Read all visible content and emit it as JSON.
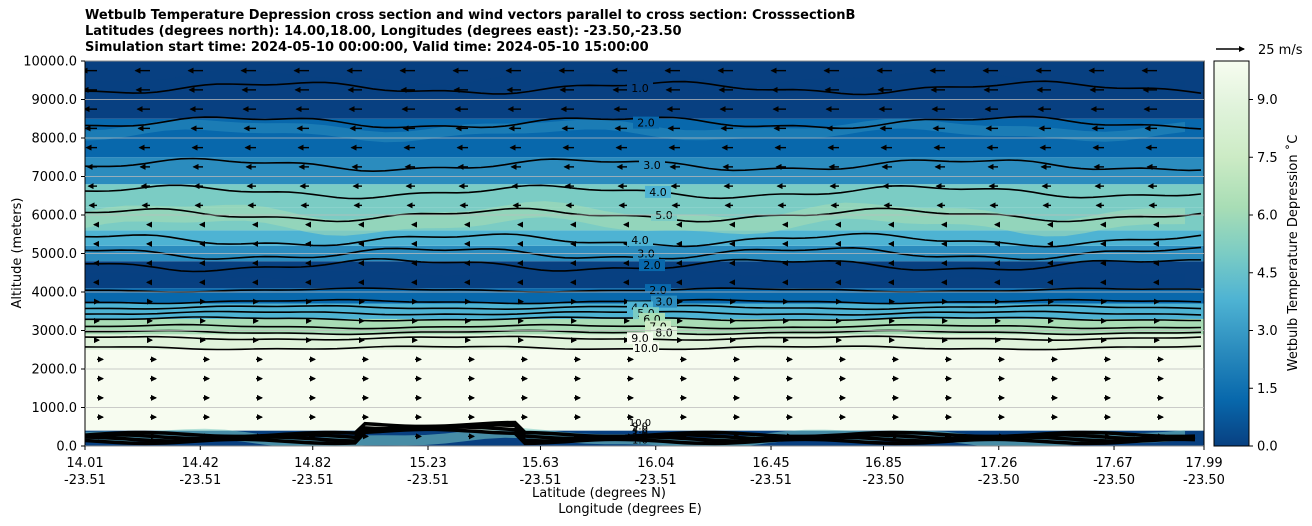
{
  "chart_data": {
    "type": "contour",
    "title_lines": [
      "Wetbulb Temperature Depression cross section and wind vectors parallel to cross section: CrosssectionB",
      "Latitudes (degrees north): 14.00,18.00, Longitudes (degrees east): -23.50,-23.50",
      "Simulation start time: 2024-05-10 00:00:00, Valid time: 2024-05-10 15:00:00"
    ],
    "ylabel": "Altitude (meters)",
    "xlabel_lat": "Latitude (degrees N)",
    "xlabel_lon": "Longitude (degrees E)",
    "ylim": [
      0,
      10000
    ],
    "y_ticks": [
      "0.0",
      "1000.0",
      "2000.0",
      "3000.0",
      "4000.0",
      "5000.0",
      "6000.0",
      "7000.0",
      "8000.0",
      "9000.0",
      "10000.0"
    ],
    "x_ticks": [
      {
        "lat": "14.01",
        "lon": "-23.51"
      },
      {
        "lat": "14.42",
        "lon": "-23.51"
      },
      {
        "lat": "14.82",
        "lon": "-23.51"
      },
      {
        "lat": "15.23",
        "lon": "-23.51"
      },
      {
        "lat": "15.63",
        "lon": "-23.51"
      },
      {
        "lat": "16.04",
        "lon": "-23.51"
      },
      {
        "lat": "16.45",
        "lon": "-23.51"
      },
      {
        "lat": "16.85",
        "lon": "-23.50"
      },
      {
        "lat": "17.26",
        "lon": "-23.50"
      },
      {
        "lat": "17.67",
        "lon": "-23.50"
      },
      {
        "lat": "17.99",
        "lon": "-23.50"
      }
    ],
    "x_range": [
      14.01,
      17.99
    ],
    "colorbar": {
      "label": "Wetbulb Temperature Depression ˚C",
      "range": [
        0,
        10
      ],
      "ticks": [
        "0.0",
        "1.5",
        "3.0",
        "4.5",
        "6.0",
        "7.5",
        "9.0"
      ],
      "colors": [
        "#084081",
        "#0868ac",
        "#2b8cbe",
        "#4eb3d3",
        "#7bccc4",
        "#a8ddb5",
        "#ccebc5",
        "#e0f3db",
        "#f7fcf0"
      ]
    },
    "wind_key": "25 m/s",
    "layer_bands": [
      {
        "from": 0,
        "to": 400,
        "depression": 0.5
      },
      {
        "from": 400,
        "to": 2500,
        "depression": 10.0
      },
      {
        "from": 2500,
        "to": 2900,
        "depression": 8.0
      },
      {
        "from": 2900,
        "to": 3300,
        "depression": 6.0
      },
      {
        "from": 3300,
        "to": 3700,
        "depression": 3.5
      },
      {
        "from": 3700,
        "to": 4100,
        "depression": 1.5
      },
      {
        "from": 4100,
        "to": 4800,
        "depression": 0.5
      },
      {
        "from": 4800,
        "to": 5200,
        "depression": 2.5
      },
      {
        "from": 5200,
        "to": 5600,
        "depression": 4.0
      },
      {
        "from": 5600,
        "to": 6200,
        "depression": 5.5
      },
      {
        "from": 6200,
        "to": 6800,
        "depression": 4.5
      },
      {
        "from": 6800,
        "to": 7500,
        "depression": 3.0
      },
      {
        "from": 7500,
        "to": 8500,
        "depression": 1.8
      },
      {
        "from": 8500,
        "to": 10000,
        "depression": 1.0
      }
    ],
    "contours": [
      {
        "label": "1.0",
        "alt": 9300
      },
      {
        "label": "2.0",
        "alt": 8400
      },
      {
        "label": "3.0",
        "alt": 7300
      },
      {
        "label": "4.0",
        "alt": 6600
      },
      {
        "label": "5.0",
        "alt": 6000
      },
      {
        "label": "4.0",
        "alt": 5350
      },
      {
        "label": "3.0",
        "alt": 5000
      },
      {
        "label": "2.0",
        "alt": 4700
      },
      {
        "label": "2.0",
        "alt": 4050
      },
      {
        "label": "3.0",
        "alt": 3750
      },
      {
        "label": "4.0",
        "alt": 3600
      },
      {
        "label": "5.0",
        "alt": 3450
      },
      {
        "label": "6.0",
        "alt": 3300
      },
      {
        "label": "7.0",
        "alt": 3100
      },
      {
        "label": "8.0",
        "alt": 2950
      },
      {
        "label": "9.0",
        "alt": 2800
      },
      {
        "label": "10.0",
        "alt": 2550
      }
    ],
    "surface_labels": [
      "10.0",
      "9.0",
      "4.0",
      "1.0",
      "2.0",
      "1.0"
    ]
  }
}
